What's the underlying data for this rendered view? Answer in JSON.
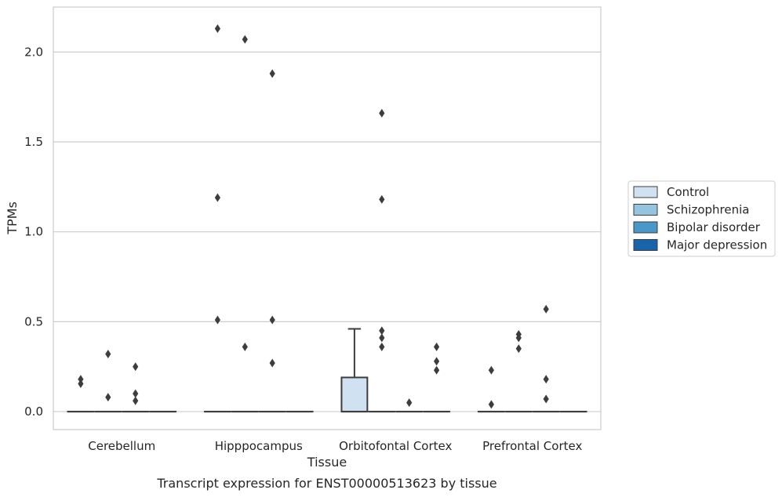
{
  "chart_data": {
    "type": "box",
    "caption": "Transcript expression for ENST00000513623 by tissue",
    "xlabel": "Tissue",
    "ylabel": "TPMs",
    "ylim": [
      -0.1,
      2.25
    ],
    "yticks": [
      0.0,
      0.5,
      1.0,
      1.5,
      2.0
    ],
    "ytick_labels": [
      "0.0",
      "0.5",
      "1.0",
      "1.5",
      "2.0"
    ],
    "grid": "horizontal",
    "legend_position": "right",
    "categories": [
      "Cerebellum",
      "Hipppocampus",
      "Orbitofontal Cortex",
      "Prefrontal Cortex"
    ],
    "series": [
      {
        "name": "Control",
        "color": "#d0e1f2",
        "boxes": [
          {
            "q1": 0,
            "median": 0,
            "q3": 0,
            "whisker_low": 0,
            "whisker_high": 0,
            "outliers": [
              0.18,
              0.155
            ]
          },
          {
            "q1": 0,
            "median": 0,
            "q3": 0,
            "whisker_low": 0,
            "whisker_high": 0,
            "outliers": [
              2.13,
              1.19,
              0.51
            ]
          },
          {
            "q1": 0,
            "median": 0,
            "q3": 0.19,
            "whisker_low": 0,
            "whisker_high": 0.46,
            "outliers": []
          },
          {
            "q1": 0,
            "median": 0,
            "q3": 0,
            "whisker_low": 0,
            "whisker_high": 0,
            "outliers": [
              0.23,
              0.04
            ]
          }
        ]
      },
      {
        "name": "Schizophrenia",
        "color": "#94c4df",
        "boxes": [
          {
            "q1": 0,
            "median": 0,
            "q3": 0,
            "whisker_low": 0,
            "whisker_high": 0,
            "outliers": [
              0.32,
              0.08
            ]
          },
          {
            "q1": 0,
            "median": 0,
            "q3": 0,
            "whisker_low": 0,
            "whisker_high": 0,
            "outliers": [
              2.07,
              0.36
            ]
          },
          {
            "q1": 0,
            "median": 0,
            "q3": 0,
            "whisker_low": 0,
            "whisker_high": 0,
            "outliers": [
              1.66,
              1.18,
              0.45,
              0.41,
              0.36
            ]
          },
          {
            "q1": 0,
            "median": 0,
            "q3": 0,
            "whisker_low": 0,
            "whisker_high": 0,
            "outliers": [
              0.43,
              0.41,
              0.35
            ]
          }
        ]
      },
      {
        "name": "Bipolar disorder",
        "color": "#4a98c9",
        "boxes": [
          {
            "q1": 0,
            "median": 0,
            "q3": 0,
            "whisker_low": 0,
            "whisker_high": 0,
            "outliers": [
              0.25,
              0.1,
              0.06
            ]
          },
          {
            "q1": 0,
            "median": 0,
            "q3": 0,
            "whisker_low": 0,
            "whisker_high": 0,
            "outliers": [
              1.88,
              0.51,
              0.27
            ]
          },
          {
            "q1": 0,
            "median": 0,
            "q3": 0,
            "whisker_low": 0,
            "whisker_high": 0,
            "outliers": [
              0.05
            ]
          },
          {
            "q1": 0,
            "median": 0,
            "q3": 0,
            "whisker_low": 0,
            "whisker_high": 0,
            "outliers": [
              0.57,
              0.18,
              0.07
            ]
          }
        ]
      },
      {
        "name": "Major depression",
        "color": "#1764ab",
        "boxes": [
          {
            "q1": 0,
            "median": 0,
            "q3": 0,
            "whisker_low": 0,
            "whisker_high": 0,
            "outliers": []
          },
          {
            "q1": 0,
            "median": 0,
            "q3": 0,
            "whisker_low": 0,
            "whisker_high": 0,
            "outliers": []
          },
          {
            "q1": 0,
            "median": 0,
            "q3": 0,
            "whisker_low": 0,
            "whisker_high": 0,
            "outliers": [
              0.36,
              0.28,
              0.23
            ]
          },
          {
            "q1": 0,
            "median": 0,
            "q3": 0,
            "whisker_low": 0,
            "whisker_high": 0,
            "outliers": []
          }
        ]
      }
    ]
  }
}
